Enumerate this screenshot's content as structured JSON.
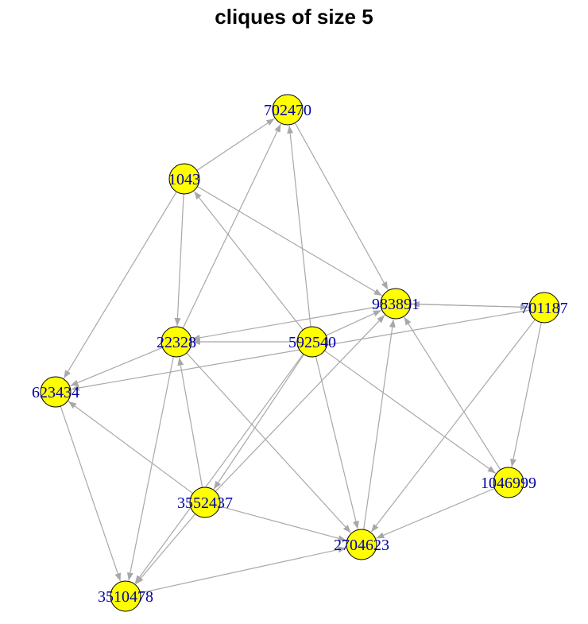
{
  "title": "cliques of size 5",
  "style": {
    "node_fill": "#ffff00",
    "node_stroke": "#000000",
    "label_color": "#0000aa",
    "edge_color": "#a8a8a8"
  },
  "graph": {
    "directed": true,
    "nodes": [
      {
        "id": "702470",
        "label": "702470"
      },
      {
        "id": "1043",
        "label": "1043"
      },
      {
        "id": "983891",
        "label": "983891"
      },
      {
        "id": "701187",
        "label": "701187"
      },
      {
        "id": "22328",
        "label": "22328"
      },
      {
        "id": "592540",
        "label": "592540"
      },
      {
        "id": "623434",
        "label": "623434"
      },
      {
        "id": "1046999",
        "label": "1046999"
      },
      {
        "id": "3552437",
        "label": "3552437"
      },
      {
        "id": "2704623",
        "label": "2704623"
      },
      {
        "id": "3510478",
        "label": "3510478"
      }
    ],
    "edges": [
      {
        "from": "1043",
        "to": "702470"
      },
      {
        "from": "22328",
        "to": "702470"
      },
      {
        "from": "592540",
        "to": "702470"
      },
      {
        "from": "702470",
        "to": "983891"
      },
      {
        "from": "1043",
        "to": "983891"
      },
      {
        "from": "1043",
        "to": "22328"
      },
      {
        "from": "1043",
        "to": "623434"
      },
      {
        "from": "592540",
        "to": "1043"
      },
      {
        "from": "701187",
        "to": "983891"
      },
      {
        "from": "983891",
        "to": "701187"
      },
      {
        "from": "983891",
        "to": "22328"
      },
      {
        "from": "592540",
        "to": "22328"
      },
      {
        "from": "592540",
        "to": "983891"
      },
      {
        "from": "22328",
        "to": "623434"
      },
      {
        "from": "701187",
        "to": "623434"
      },
      {
        "from": "22328",
        "to": "3510478"
      },
      {
        "from": "22328",
        "to": "2704623"
      },
      {
        "from": "592540",
        "to": "2704623"
      },
      {
        "from": "592540",
        "to": "1046999"
      },
      {
        "from": "592540",
        "to": "3552437"
      },
      {
        "from": "592540",
        "to": "3510478"
      },
      {
        "from": "3552437",
        "to": "983891"
      },
      {
        "from": "3552437",
        "to": "22328"
      },
      {
        "from": "3552437",
        "to": "623434"
      },
      {
        "from": "3552437",
        "to": "3510478"
      },
      {
        "from": "3552437",
        "to": "2704623"
      },
      {
        "from": "623434",
        "to": "3510478"
      },
      {
        "from": "3510478",
        "to": "2704623"
      },
      {
        "from": "2704623",
        "to": "983891"
      },
      {
        "from": "1046999",
        "to": "983891"
      },
      {
        "from": "701187",
        "to": "1046999"
      },
      {
        "from": "701187",
        "to": "2704623"
      },
      {
        "from": "1046999",
        "to": "2704623"
      }
    ]
  }
}
